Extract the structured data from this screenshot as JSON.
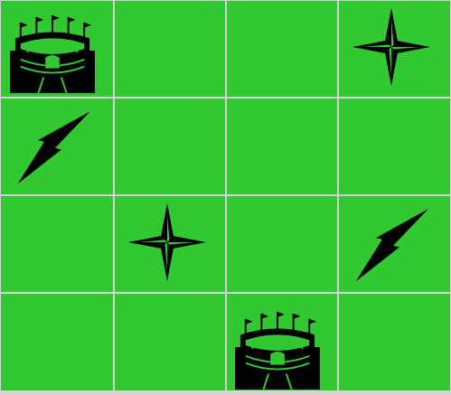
{
  "board": {
    "tile_color": "#32c832",
    "line_color": "#d4d4d4",
    "rows": 4,
    "cols": 4,
    "cells": [
      [
        "stadium",
        "empty",
        "empty",
        "star"
      ],
      [
        "bolt",
        "empty",
        "empty",
        "empty"
      ],
      [
        "empty",
        "star",
        "empty",
        "bolt"
      ],
      [
        "empty",
        "empty",
        "stadium",
        "empty"
      ]
    ]
  },
  "pieces": {
    "stadium": {
      "icon": "stadium-icon",
      "color": "#000000"
    },
    "star": {
      "icon": "four-point-star-icon",
      "color": "#000000"
    },
    "bolt": {
      "icon": "lightning-bolt-icon",
      "color": "#000000"
    }
  }
}
